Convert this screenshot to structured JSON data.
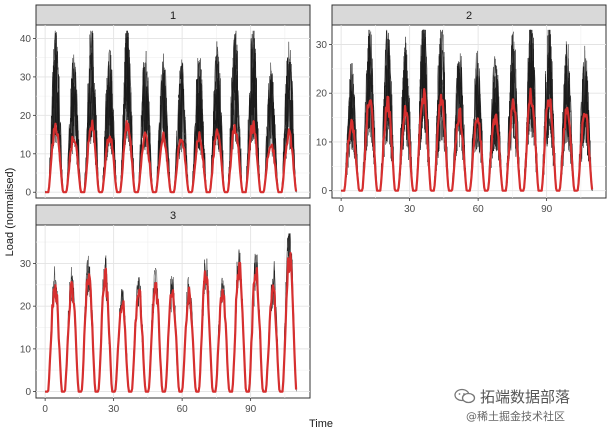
{
  "chart_data": {
    "type": "line",
    "xlabel": "Time",
    "ylabel": "Load (normalised)",
    "x_ticks": [
      0,
      30,
      60,
      90
    ],
    "series_colors": {
      "individual": "#1a1a1a",
      "centroid": "#d62f2f"
    },
    "panels": [
      {
        "strip": "1",
        "xlim": [
          -4,
          116
        ],
        "ylim": [
          -1.5,
          43.5
        ],
        "y_ticks": [
          0,
          10,
          20,
          30,
          40
        ],
        "show_x_axis": false,
        "cycles": 14,
        "centroid_peak": 17,
        "individual_max": 42
      },
      {
        "strip": "2",
        "xlim": [
          -4,
          116
        ],
        "ylim": [
          -1.5,
          34
        ],
        "y_ticks": [
          0,
          10,
          20,
          30
        ],
        "show_x_axis": true,
        "cycles": 14,
        "centroid_peak": 18,
        "individual_max": 33
      },
      {
        "strip": "3",
        "xlim": [
          -4,
          116
        ],
        "ylim": [
          -1.5,
          39
        ],
        "y_ticks": [
          0,
          10,
          20,
          30
        ],
        "show_x_axis": true,
        "cycles": 15,
        "centroid_peak": 27,
        "individual_max": 37
      }
    ]
  },
  "watermark": {
    "line1": "拓端数据部落",
    "line2": "@稀土掘金技术社区"
  }
}
